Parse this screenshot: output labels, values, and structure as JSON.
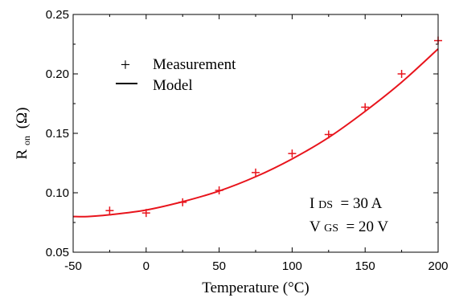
{
  "chart_data": {
    "type": "scatter",
    "title": "",
    "xlabel": "Temperature (°C)",
    "ylabel_main": "R",
    "ylabel_sub": "on",
    "ylabel_unit": "(Ω)",
    "xlim": [
      -50,
      200
    ],
    "ylim": [
      0.05,
      0.25
    ],
    "xticks": [
      -50,
      0,
      50,
      100,
      150,
      200
    ],
    "xtick_labels": [
      "-50",
      "0",
      "50",
      "100",
      "150",
      "200"
    ],
    "yticks": [
      0.05,
      0.1,
      0.15,
      0.2,
      0.25
    ],
    "ytick_labels": [
      "0.05",
      "0.10",
      "0.15",
      "0.20",
      "0.25"
    ],
    "grid": false,
    "legend_position": "top-left",
    "series": [
      {
        "name": "Measurement",
        "kind": "markers",
        "marker": "plus",
        "color": "#e8141c",
        "x": [
          -25,
          0,
          25,
          50,
          75,
          100,
          125,
          150,
          175,
          200
        ],
        "y": [
          0.085,
          0.083,
          0.092,
          0.102,
          0.117,
          0.133,
          0.149,
          0.172,
          0.2,
          0.228
        ]
      },
      {
        "name": "Model",
        "kind": "line",
        "color": "#e8141c",
        "x": [
          -50,
          -40,
          -25,
          0,
          25,
          50,
          75,
          100,
          125,
          150,
          175,
          200
        ],
        "y": [
          0.08,
          0.08,
          0.0815,
          0.0855,
          0.0925,
          0.1015,
          0.1135,
          0.1285,
          0.1465,
          0.1685,
          0.193,
          0.221
        ]
      }
    ],
    "legend": {
      "marker_symbol": "+",
      "measurement_label": "Measurement",
      "model_label": "Model"
    },
    "annotations": {
      "ids_main": "I",
      "ids_sub": "DS",
      "ids_value": " = 30 A",
      "vgs_main": "V",
      "vgs_sub": "GS",
      "vgs_value": " = 20 V"
    }
  }
}
